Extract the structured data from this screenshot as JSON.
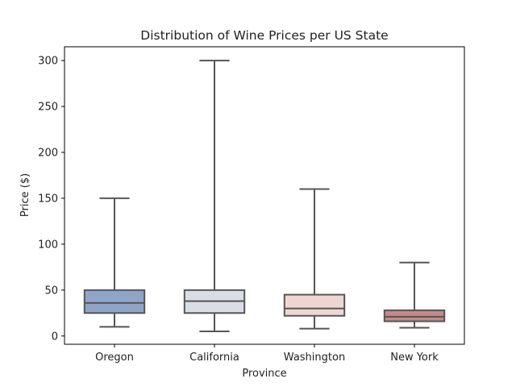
{
  "chart_data": {
    "type": "box",
    "title": "Distribution of Wine Prices per US State",
    "xlabel": "Province",
    "ylabel": "Price ($)",
    "ylim": [
      -9,
      315
    ],
    "yticks": [
      0,
      50,
      100,
      150,
      200,
      250,
      300
    ],
    "grid": false,
    "legend": "none",
    "categories": [
      "Oregon",
      "California",
      "Washington",
      "New York"
    ],
    "series": [
      {
        "category": "Oregon",
        "whisker_low": 10,
        "q1": 25,
        "median": 36,
        "q3": 50,
        "whisker_high": 150,
        "color": "#8ea5c8"
      },
      {
        "category": "California",
        "whisker_low": 5,
        "q1": 25,
        "median": 38,
        "q3": 50,
        "whisker_high": 300,
        "color": "#d9dde6"
      },
      {
        "category": "Washington",
        "whisker_low": 8,
        "q1": 22,
        "median": 30,
        "q3": 45,
        "whisker_high": 160,
        "color": "#eed7d3"
      },
      {
        "category": "New York",
        "whisker_low": 9,
        "q1": 16,
        "median": 21,
        "q3": 28,
        "whisker_high": 80,
        "color": "#c48a87"
      }
    ],
    "line_color": "#555555"
  }
}
